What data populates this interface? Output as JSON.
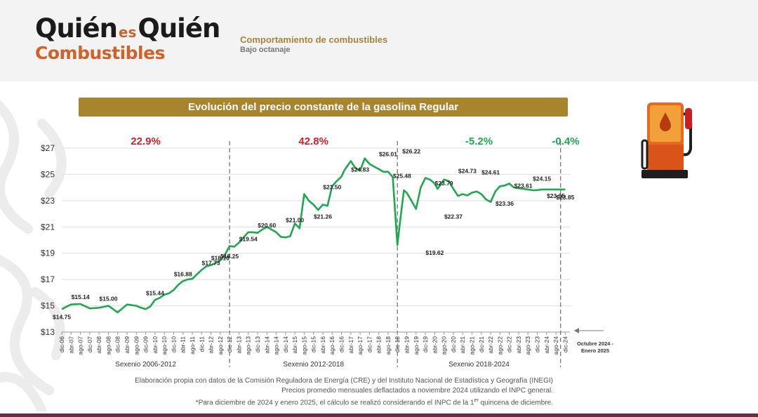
{
  "header": {
    "logo_line1_a": "Quién",
    "logo_line1_es": "es",
    "logo_line1_b": "Quién",
    "logo_line2": "Combustibles",
    "title": "Comportamiento de combustibles",
    "subtitle": "Bajo octanaje"
  },
  "banner": {
    "title": "Evolución del precio constante de la gasolina Regular"
  },
  "footer": {
    "line1": "Elaboración propia con datos de la Comisión Reguladora de Energía (CRE) y del Instituto Nacional de Estadística y Geografía (INEGI)",
    "line2": "Precios promedio mensuales deflactados a noviembre 2024 utilizando el INPC general.",
    "line3_a": "*Para diciembre de 2024 y enero 2025, el cálculo se realizó considerando el INPC de la 1",
    "line3_sup": "er",
    "line3_b": " quincena de diciembre."
  },
  "icons": {
    "pump": "fuel-pump-icon",
    "arrow": "left-arrow-icon"
  },
  "colors": {
    "line": "#1fa84f",
    "negative_pct": "#d8202a",
    "positive_pct": "#1fa84f",
    "banner": "#a8842f",
    "brand_orange": "#d2602a"
  },
  "chart_data": {
    "type": "line",
    "title": "Evolución del precio constante de la gasolina Regular",
    "ylim": [
      13,
      27
    ],
    "ylabel": "",
    "xlabel": "",
    "grid": true,
    "y_ticks": [
      "$27",
      "$25",
      "$23",
      "$21",
      "$19",
      "$17",
      "$15",
      "$13"
    ],
    "y_tick_values": [
      27,
      25,
      23,
      21,
      19,
      17,
      15,
      13
    ],
    "x_ticks": [
      "dic-06",
      "abr-07",
      "ago-07",
      "dic-07",
      "abr-08",
      "ago-08",
      "dic-08",
      "abr-09",
      "ago-09",
      "dic-09",
      "abr-10",
      "ago-10",
      "dic-10",
      "abr-11",
      "ago-11",
      "dic-11",
      "abr-12",
      "ago-12",
      "dic-12",
      "abr-13",
      "ago-13",
      "dic-13",
      "abr-14",
      "ago-14",
      "dic-14",
      "abr-15",
      "ago-15",
      "dic-15",
      "abr-16",
      "ago-16",
      "dic-16",
      "abr-17",
      "ago-17",
      "dic-17",
      "abr-18",
      "ago-18",
      "dic-18",
      "abr-19",
      "ago-19",
      "dic-19",
      "abr-20",
      "ago-20",
      "dic-20",
      "abr-21",
      "ago-21",
      "dic-21",
      "abr-22",
      "ago-22",
      "dic-22",
      "abr-23",
      "ago-23",
      "dic-23",
      "abr-24",
      "ago-24",
      "dic-24"
    ],
    "series": [
      {
        "x_index": [
          0,
          1,
          2,
          3,
          4,
          5,
          6,
          7,
          8,
          8.5,
          9,
          9.5,
          10,
          10.5,
          11,
          11.5,
          12,
          12.5,
          13,
          13.5,
          14,
          14.5,
          15,
          15.5,
          16,
          16.5,
          17,
          17.5,
          18,
          18.5,
          19,
          19.5,
          20,
          20.5,
          21,
          21.5,
          22,
          22.5,
          23,
          23.5,
          24,
          24.5,
          25,
          25.5,
          26,
          26.5,
          27,
          27.5,
          28,
          28.5,
          29,
          29.5,
          30,
          30.3,
          31,
          31.5,
          32,
          32.5,
          33,
          33.5,
          34,
          34.5,
          35,
          35.5,
          36,
          36.3,
          36.7,
          37,
          37.5,
          38,
          38.5,
          39,
          39.5,
          40,
          40.3,
          40.7,
          41,
          41.5,
          42,
          42.5,
          43,
          43.5,
          44,
          44.5,
          45,
          45.5,
          46,
          46.5,
          47,
          47.5,
          48,
          48.5,
          49,
          49.5,
          50,
          50.5,
          51,
          51.5,
          52,
          52.5,
          53,
          53.3,
          53.5,
          53.7,
          54
        ],
        "values": [
          14.75,
          15.1,
          15.14,
          14.8,
          14.85,
          15.0,
          14.5,
          15.1,
          15.0,
          14.85,
          14.75,
          14.95,
          15.44,
          15.6,
          15.85,
          15.95,
          16.2,
          16.6,
          16.88,
          17.0,
          17.05,
          17.4,
          17.73,
          18.0,
          18.1,
          18.25,
          18.45,
          18.9,
          19.54,
          19.5,
          19.8,
          20.2,
          20.6,
          20.6,
          20.55,
          20.8,
          21.0,
          20.8,
          20.6,
          20.25,
          20.2,
          20.3,
          21.26,
          20.9,
          23.5,
          23.0,
          22.7,
          22.3,
          22.7,
          22.6,
          24.1,
          24.5,
          24.83,
          25.3,
          26.01,
          25.48,
          25.3,
          26.22,
          25.8,
          25.6,
          25.4,
          25.2,
          25.2,
          24.8,
          19.62,
          21.5,
          23.79,
          23.6,
          23.0,
          22.37,
          24.0,
          24.73,
          24.6,
          24.3,
          23.9,
          24.3,
          24.61,
          24.5,
          23.9,
          23.36,
          23.5,
          23.4,
          23.61,
          23.7,
          23.5,
          23.1,
          22.9,
          23.7,
          24.1,
          24.15,
          24.3,
          24.0,
          23.95,
          23.9,
          23.85,
          23.8,
          23.8,
          23.85,
          23.85,
          23.85,
          23.85,
          23.85,
          23.85,
          23.85,
          23.85
        ],
        "name": ""
      }
    ],
    "value_labels": [
      {
        "label": "$14.75",
        "x": 0,
        "y": 14.75
      },
      {
        "label": "$15.14",
        "x": 2,
        "y": 15.14
      },
      {
        "label": "$15.00",
        "x": 5,
        "y": 15.0
      },
      {
        "label": "$15.44",
        "x": 10,
        "y": 15.44
      },
      {
        "label": "$16.88",
        "x": 13,
        "y": 16.88
      },
      {
        "label": "$17.73",
        "x": 16,
        "y": 17.73
      },
      {
        "label": "$18.10",
        "x": 17,
        "y": 18.1
      },
      {
        "label": "$18.25",
        "x": 18,
        "y": 18.25
      },
      {
        "label": "$19.54",
        "x": 20,
        "y": 19.54
      },
      {
        "label": "$20.60",
        "x": 22,
        "y": 20.6
      },
      {
        "label": "$21.00",
        "x": 25,
        "y": 21.0
      },
      {
        "label": "$21.26",
        "x": 28,
        "y": 21.26
      },
      {
        "label": "$23.50",
        "x": 29,
        "y": 23.5
      },
      {
        "label": "$24.83",
        "x": 32,
        "y": 24.83
      },
      {
        "label": "$26.01",
        "x": 35,
        "y": 26.01
      },
      {
        "label": "$25.48",
        "x": 36.5,
        "y": 25.48
      },
      {
        "label": "$26.22",
        "x": 37.5,
        "y": 26.22
      },
      {
        "label": "$19.62",
        "x": 40,
        "y": 19.62
      },
      {
        "label": "$23.79",
        "x": 41,
        "y": 23.79
      },
      {
        "label": "$22.37",
        "x": 42,
        "y": 22.37
      },
      {
        "label": "$24.73",
        "x": 43.5,
        "y": 24.73
      },
      {
        "label": "$24.61",
        "x": 46,
        "y": 24.61
      },
      {
        "label": "$23.36",
        "x": 47.5,
        "y": 23.36
      },
      {
        "label": "$23.61",
        "x": 49.5,
        "y": 23.61
      },
      {
        "label": "$24.15",
        "x": 51.5,
        "y": 24.15
      },
      {
        "label": "$23.95",
        "x": 53,
        "y": 23.95
      },
      {
        "label": "$23.85",
        "x": 54,
        "y": 23.85
      }
    ],
    "periods": [
      {
        "label": "Sexenio 2006-2012",
        "pct": "22.9%",
        "trend": "up",
        "start": 0,
        "end": 18
      },
      {
        "label": "Sexenio 2012-2018",
        "pct": "42.8%",
        "trend": "up",
        "start": 18,
        "end": 36
      },
      {
        "label": "Sexenio 2018-2024",
        "pct": "-5.2%",
        "trend": "down",
        "start": 36,
        "end": 53.5
      },
      {
        "label": "",
        "pct": "-0.4%",
        "trend": "down",
        "start": 53.5,
        "end": 54.6
      }
    ],
    "dividers": [
      18,
      36,
      53.5
    ],
    "annotation": "Octubre 2024 - Enero 2025"
  }
}
